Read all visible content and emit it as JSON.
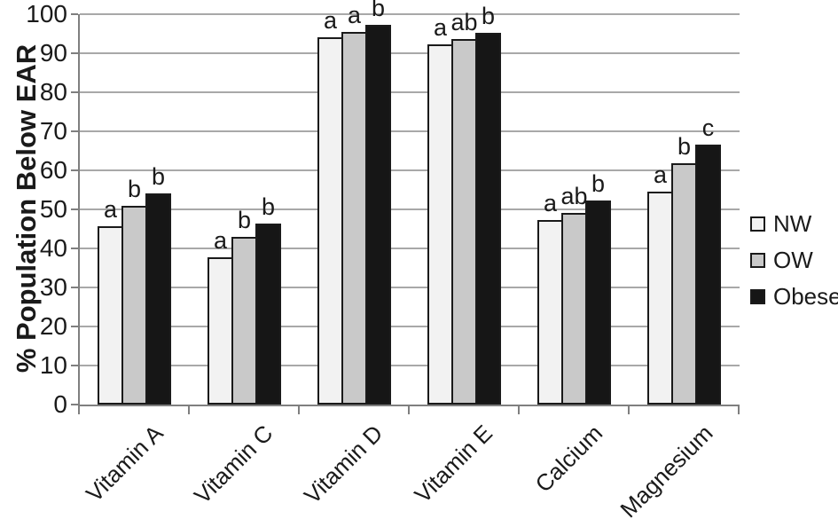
{
  "chart_data": {
    "type": "bar",
    "title": "",
    "ylabel": "% Population Below EAR",
    "xlabel": "",
    "ylim": [
      0,
      100
    ],
    "ytick_step": 10,
    "grid": true,
    "legend_position": "right",
    "categories": [
      "Vitamin A",
      "Vitamin C",
      "Vitamin D",
      "Vitamin E",
      "Calcium",
      "Magnesium"
    ],
    "series": [
      {
        "name": "NW",
        "color": "#f2f2f2",
        "values": [
          45.7,
          37.8,
          94.2,
          92.3,
          47.3,
          54.5
        ]
      },
      {
        "name": "OW",
        "color": "#c9c9c9",
        "values": [
          50.8,
          43.0,
          95.5,
          93.7,
          49.2,
          61.8
        ]
      },
      {
        "name": "Obese",
        "color": "#161616",
        "values": [
          54.0,
          46.4,
          97.2,
          95.3,
          52.2,
          66.5
        ]
      }
    ],
    "significance_letters": [
      [
        "a",
        "b",
        "b"
      ],
      [
        "a",
        "b",
        "b"
      ],
      [
        "a",
        "a",
        "b"
      ],
      [
        "a",
        "ab",
        "b"
      ],
      [
        "a",
        "ab",
        "b"
      ],
      [
        "a",
        "b",
        "c"
      ]
    ],
    "colors": {
      "axis": "#7f7f7f",
      "gridline": "#a8a8a8",
      "bar_border": "#1a1a1a",
      "text": "#1a1a1a",
      "background": "#ffffff"
    }
  }
}
